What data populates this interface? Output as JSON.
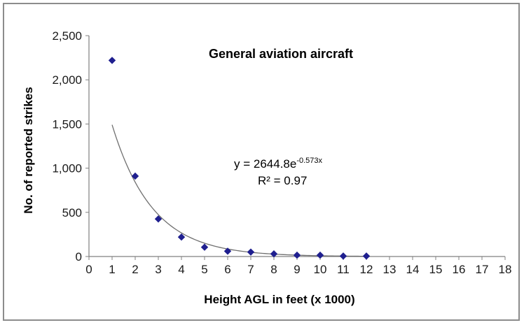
{
  "chart_data": {
    "type": "scatter",
    "title": "General aviation aircraft",
    "xlabel": "Height AGL in feet (x 1000)",
    "ylabel": "No. of reported strikes",
    "xlim": [
      0,
      18
    ],
    "ylim": [
      0,
      2500
    ],
    "xticks": [
      "0",
      "1",
      "2",
      "3",
      "4",
      "5",
      "6",
      "7",
      "8",
      "9",
      "10",
      "11",
      "12",
      "13",
      "14",
      "15",
      "16",
      "17",
      "18"
    ],
    "yticks": [
      "0",
      "500",
      "1,000",
      "1,500",
      "2,000",
      "2,500"
    ],
    "grid": false,
    "legend": "none",
    "marker_color": "#1f1f8f",
    "trendline_color": "#707070",
    "series": [
      {
        "x": [
          1,
          2,
          3,
          4,
          5,
          6,
          7,
          8,
          9,
          10,
          11,
          12
        ],
        "y": [
          2220,
          910,
          425,
          220,
          105,
          60,
          50,
          30,
          15,
          15,
          5,
          5
        ]
      }
    ],
    "trendline": {
      "type": "exponential",
      "a": 2644.8,
      "b": -0.573,
      "x_range": [
        1,
        12
      ],
      "equation_base": "y = 2644.8e",
      "equation_exponent": "-0.573x",
      "r_squared_label": "R² = 0.97"
    }
  }
}
